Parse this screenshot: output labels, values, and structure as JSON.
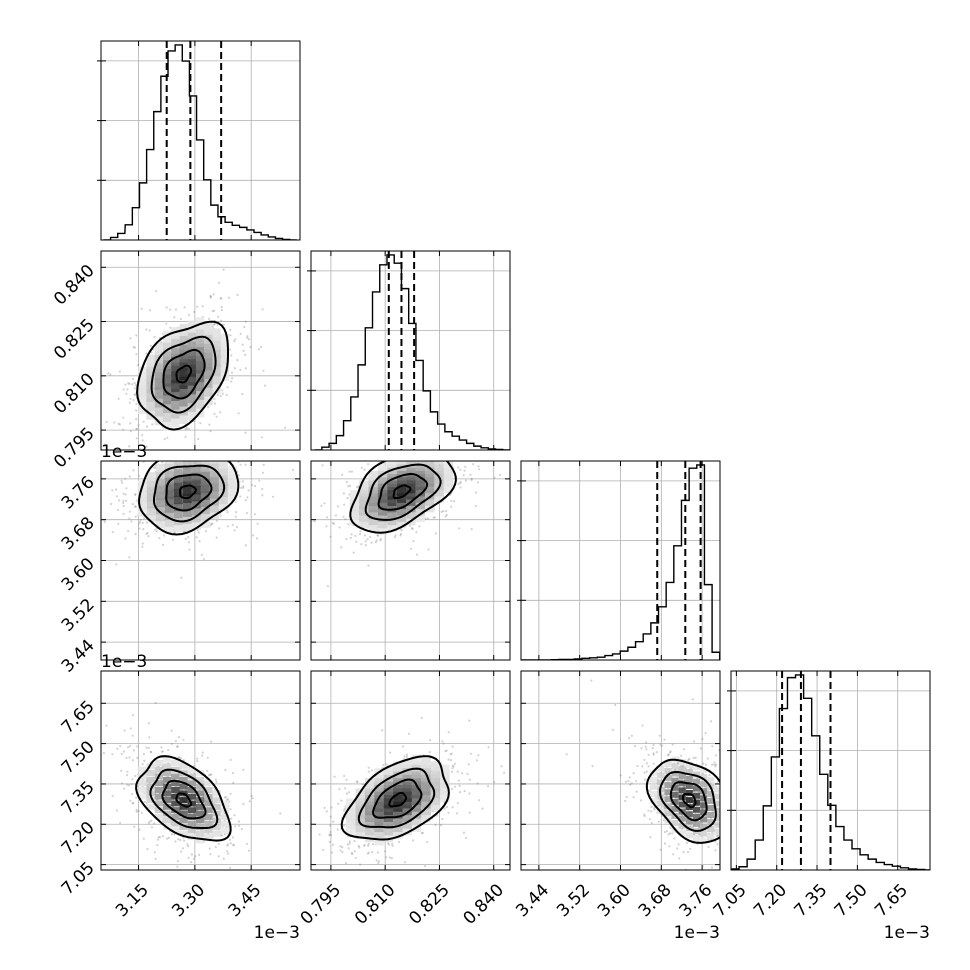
{
  "chart_data": {
    "type": "corner",
    "parameters": [
      {
        "range": [
          3.05,
          3.58
        ],
        "ticks": [
          3.15,
          3.3,
          3.45
        ],
        "tick_labels": [
          "3.15",
          "3.30",
          "3.45"
        ],
        "offset_label": "1e−3",
        "quantiles": [
          3.225,
          3.288,
          3.37
        ],
        "hist_centers": [
          3.066,
          3.085,
          3.104,
          3.124,
          3.143,
          3.162,
          3.181,
          3.2,
          3.219,
          3.238,
          3.257,
          3.276,
          3.295,
          3.314,
          3.333,
          3.352,
          3.371,
          3.39,
          3.409,
          3.429,
          3.448,
          3.467,
          3.486,
          3.505,
          3.524,
          3.543,
          3.562
        ],
        "hist_counts": [
          0.0,
          0.5,
          1.3,
          3.0,
          6.4,
          11.3,
          17.9,
          25.4,
          32.4,
          37.4,
          38.6,
          35.4,
          28.5,
          19.8,
          11.9,
          6.9,
          4.6,
          3.5,
          2.9,
          2.5,
          2.0,
          1.5,
          1.0,
          0.6,
          0.3,
          0.1,
          0.0
        ]
      },
      {
        "range": [
          0.7895,
          0.8445
        ],
        "ticks": [
          0.795,
          0.81,
          0.825,
          0.84
        ],
        "tick_labels": [
          "0.795",
          "0.810",
          "0.825",
          "0.840"
        ],
        "offset_label": "",
        "quantiles": [
          0.811,
          0.8145,
          0.818
        ],
        "hist_centers": [
          0.7915,
          0.7935,
          0.7955,
          0.7975,
          0.7995,
          0.8015,
          0.8035,
          0.8055,
          0.8075,
          0.8095,
          0.8115,
          0.8135,
          0.8155,
          0.8175,
          0.8195,
          0.8215,
          0.8235,
          0.8255,
          0.8275,
          0.8295,
          0.8315,
          0.8335,
          0.8355,
          0.8375,
          0.8395,
          0.8415,
          0.8435
        ],
        "hist_counts": [
          0.0,
          0.5,
          1.2,
          2.6,
          5.3,
          9.6,
          15.4,
          22.1,
          28.6,
          33.5,
          35.3,
          33.8,
          29.2,
          22.9,
          16.2,
          10.7,
          6.9,
          4.7,
          3.3,
          2.5,
          1.8,
          1.2,
          0.7,
          0.4,
          0.2,
          0.1,
          0.0
        ]
      },
      {
        "range": [
          3.405,
          3.795
        ],
        "ticks": [
          3.44,
          3.52,
          3.6,
          3.68,
          3.76
        ],
        "tick_labels": [
          "3.44",
          "3.52",
          "3.60",
          "3.68",
          "3.76"
        ],
        "offset_label": "1e−3",
        "quantiles": [
          3.672,
          3.727,
          3.757
        ],
        "hist_centers": [
          3.412,
          3.427,
          3.442,
          3.457,
          3.472,
          3.487,
          3.502,
          3.517,
          3.532,
          3.547,
          3.562,
          3.577,
          3.592,
          3.607,
          3.622,
          3.637,
          3.652,
          3.667,
          3.682,
          3.697,
          3.712,
          3.727,
          3.742,
          3.757,
          3.772,
          3.787
        ],
        "hist_counts": [
          0.0,
          0.0,
          0.0,
          0.0,
          0.05,
          0.1,
          0.1,
          0.2,
          0.3,
          0.4,
          0.5,
          0.8,
          1.1,
          1.6,
          2.3,
          3.3,
          4.7,
          6.7,
          9.6,
          14.0,
          20.6,
          28.8,
          34.6,
          35.2,
          13.6,
          1.4
        ]
      },
      {
        "range": [
          7.03,
          7.77
        ],
        "ticks": [
          7.05,
          7.2,
          7.35,
          7.5,
          7.65
        ],
        "tick_labels": [
          "7.05",
          "7.20",
          "7.35",
          "7.50",
          "7.65"
        ],
        "offset_label": "1e−3",
        "quantiles": [
          7.22,
          7.29,
          7.4
        ],
        "hist_centers": [
          7.045,
          7.075,
          7.105,
          7.135,
          7.165,
          7.195,
          7.225,
          7.255,
          7.285,
          7.315,
          7.345,
          7.375,
          7.405,
          7.435,
          7.465,
          7.495,
          7.525,
          7.555,
          7.585,
          7.615,
          7.645,
          7.675,
          7.705,
          7.735,
          7.765
        ],
        "hist_counts": [
          0.2,
          0.6,
          2.0,
          5.5,
          11.8,
          20.8,
          29.7,
          35.4,
          35.9,
          31.6,
          24.7,
          17.6,
          11.9,
          8.0,
          5.5,
          3.9,
          2.8,
          2.0,
          1.4,
          1.0,
          0.7,
          0.4,
          0.2,
          0.1,
          0.0
        ]
      }
    ],
    "pairs": [
      {
        "row": 1,
        "col": 0,
        "center": [
          3.27,
          0.8105
        ],
        "sigma": [
          0.055,
          0.0065
        ],
        "rho": 0.35,
        "contour_radii": [
          0.35,
          1.0,
          1.55,
          2.2
        ]
      },
      {
        "row": 2,
        "col": 0,
        "center": [
          3.28,
          3.735
        ],
        "sigma": [
          0.06,
          0.035
        ],
        "rho": 0.2,
        "contour_radii": [
          0.35,
          1.0,
          1.55,
          2.2
        ]
      },
      {
        "row": 2,
        "col": 1,
        "center": [
          0.8145,
          3.735
        ],
        "sigma": [
          0.0065,
          0.035
        ],
        "rho": 0.45,
        "contour_radii": [
          0.35,
          1.0,
          1.55,
          2.2
        ]
      },
      {
        "row": 3,
        "col": 0,
        "center": [
          3.27,
          7.29
        ],
        "sigma": [
          0.055,
          0.07
        ],
        "rho": -0.45,
        "contour_radii": [
          0.35,
          1.0,
          1.55,
          2.2
        ]
      },
      {
        "row": 3,
        "col": 1,
        "center": [
          0.8135,
          7.29
        ],
        "sigma": [
          0.0065,
          0.07
        ],
        "rho": 0.45,
        "contour_radii": [
          0.35,
          1.0,
          1.55,
          2.2
        ]
      },
      {
        "row": 3,
        "col": 2,
        "center": [
          3.735,
          7.29
        ],
        "sigma": [
          0.035,
          0.07
        ],
        "rho": -0.35,
        "contour_radii": [
          0.35,
          1.0,
          1.55,
          2.2
        ]
      }
    ],
    "grid": true
  }
}
